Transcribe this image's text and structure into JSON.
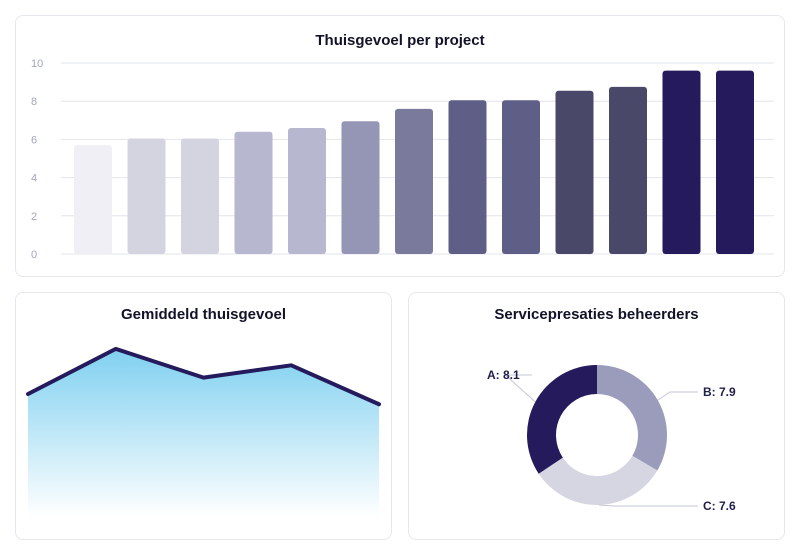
{
  "colors": {
    "bar_gradient": [
      "#efeff5",
      "#d4d4e1",
      "#d4d4e1",
      "#b7b7cf",
      "#b7b7cf",
      "#9595b5",
      "#7a7a9d",
      "#5f5e86",
      "#5f5e86",
      "#4a4868",
      "#4a4868",
      "#241a5c",
      "#241a5c"
    ],
    "line": "#241a5c",
    "area_top": "#7fd0f0",
    "area_bottom": "#ffffff",
    "donut": [
      "#241a5c",
      "#9b9bbc",
      "#d6d6e3"
    ]
  },
  "chart_data": [
    {
      "type": "bar",
      "title": "Thuisgevoel per project",
      "xlabel": "",
      "ylabel": "",
      "ylim": [
        0,
        10
      ],
      "yticks": [
        0,
        2,
        4,
        6,
        8,
        10
      ],
      "grid": true,
      "values": [
        5.7,
        6.05,
        6.05,
        6.4,
        6.6,
        6.95,
        7.6,
        8.05,
        8.05,
        8.55,
        8.75,
        9.6,
        9.6
      ]
    },
    {
      "type": "area",
      "title": "Gemiddeld thuisgevoel",
      "values": [
        6.0,
        8.2,
        6.8,
        7.4,
        5.5
      ],
      "ylim": [
        0,
        10
      ]
    },
    {
      "type": "pie",
      "title": "Servicepresaties beheerders",
      "slices": [
        {
          "label": "A: 8.1",
          "value": 8.1
        },
        {
          "label": "B: 7.9",
          "value": 7.9
        },
        {
          "label": "C: 7.6",
          "value": 7.6
        }
      ]
    }
  ]
}
